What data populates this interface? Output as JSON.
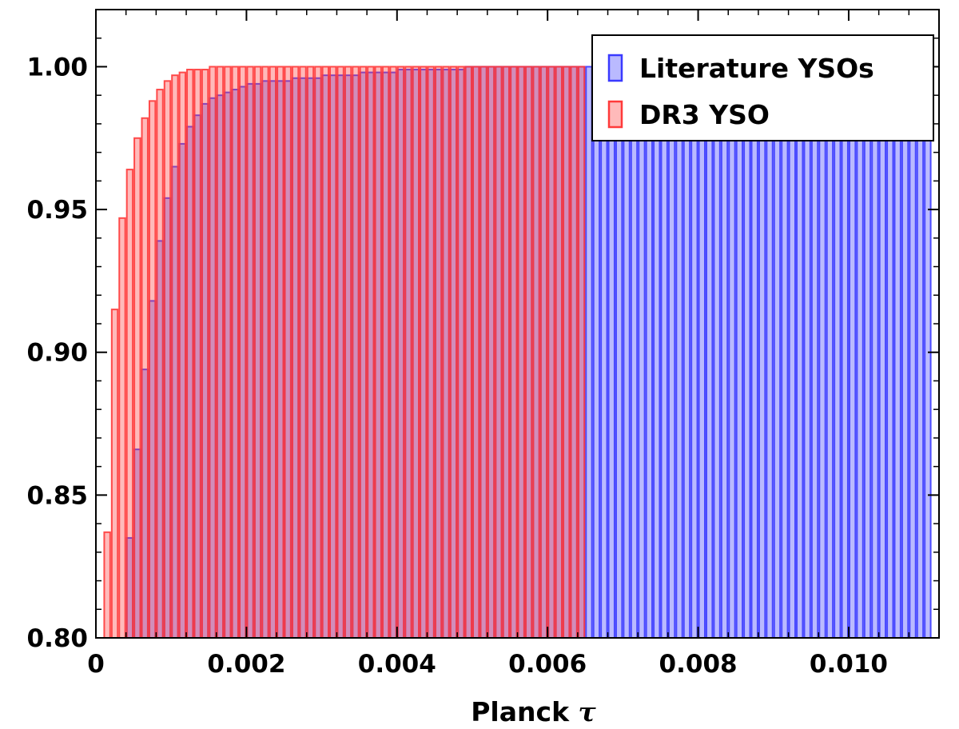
{
  "chart_data": {
    "type": "bar",
    "subtype": "cumulative-histogram",
    "xlabel_main": "Planck ",
    "xlabel_symbol": "τ",
    "ylabel": "",
    "title": "",
    "xlim": [
      0,
      0.0112
    ],
    "ylim": [
      0.8,
      1.02
    ],
    "xticks": [
      0,
      0.002,
      0.004,
      0.006,
      0.008,
      0.01
    ],
    "xtick_labels": [
      "0",
      "0.002",
      "0.004",
      "0.006",
      "0.008",
      "0.010"
    ],
    "yticks": [
      0.8,
      0.85,
      0.9,
      0.95,
      1.0
    ],
    "ytick_labels": [
      "0.80",
      "0.85",
      "0.90",
      "0.95",
      "1.00"
    ],
    "grid": false,
    "legend_position": "top-right",
    "series": [
      {
        "name": "Literature YSOs",
        "color": "#3a3aff",
        "bin_width": 0.0001,
        "x_start": 0.0,
        "values": [
          0.0,
          0.0,
          0.0,
          0.0,
          0.835,
          0.866,
          0.894,
          0.918,
          0.939,
          0.954,
          0.965,
          0.973,
          0.979,
          0.983,
          0.987,
          0.989,
          0.99,
          0.991,
          0.992,
          0.993,
          0.994,
          0.994,
          0.995,
          0.995,
          0.995,
          0.995,
          0.996,
          0.996,
          0.996,
          0.996,
          0.997,
          0.997,
          0.997,
          0.997,
          0.997,
          0.998,
          0.998,
          0.998,
          0.998,
          0.998,
          0.999,
          0.999,
          0.999,
          0.999,
          0.999,
          0.999,
          0.999,
          0.999,
          0.999,
          1.0,
          1.0,
          1.0,
          1.0,
          1.0,
          1.0,
          1.0,
          1.0,
          1.0,
          1.0,
          1.0,
          1.0,
          1.0,
          1.0,
          1.0,
          1.0,
          1.0,
          1.0,
          1.0,
          1.0,
          1.0,
          1.0,
          1.0,
          1.0,
          1.0,
          1.0,
          1.0,
          1.0,
          1.0,
          1.0,
          1.0,
          1.0,
          1.0,
          1.0,
          1.0,
          1.0,
          1.0,
          1.0,
          1.0,
          1.0,
          1.0,
          1.0,
          1.0,
          1.0,
          1.0,
          1.0,
          1.0,
          1.0,
          1.0,
          1.0,
          1.0,
          1.0,
          1.0,
          1.0,
          1.0,
          1.0,
          1.0,
          1.0,
          1.0,
          1.0,
          1.0,
          1.0
        ]
      },
      {
        "name": "DR3 YSO",
        "color": "#ff3a3a",
        "bin_width": 0.0001,
        "x_start": 0.0,
        "values": [
          0.0,
          0.837,
          0.915,
          0.947,
          0.964,
          0.975,
          0.982,
          0.988,
          0.992,
          0.995,
          0.997,
          0.998,
          0.999,
          0.999,
          0.999,
          1.0,
          1.0,
          1.0,
          1.0,
          1.0,
          1.0,
          1.0,
          1.0,
          1.0,
          1.0,
          1.0,
          1.0,
          1.0,
          1.0,
          1.0,
          1.0,
          1.0,
          1.0,
          1.0,
          1.0,
          1.0,
          1.0,
          1.0,
          1.0,
          1.0,
          1.0,
          1.0,
          1.0,
          1.0,
          1.0,
          1.0,
          1.0,
          1.0,
          1.0,
          1.0,
          1.0,
          1.0,
          1.0,
          1.0,
          1.0,
          1.0,
          1.0,
          1.0,
          1.0,
          1.0,
          1.0,
          1.0,
          1.0,
          1.0,
          1.0
        ]
      }
    ]
  }
}
